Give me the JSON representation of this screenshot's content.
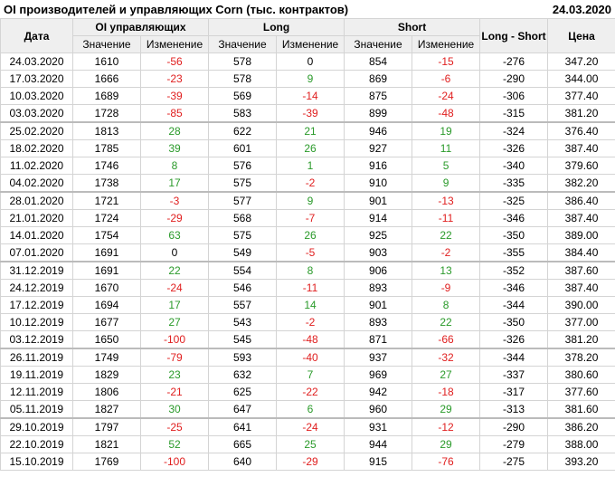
{
  "header": {
    "title": "OI производителей и управляющих Corn (тыс. контрактов)",
    "date": "24.03.2020"
  },
  "table": {
    "groups": [
      "Дата",
      "OI управляющих",
      "Long",
      "Short",
      "Long - Short",
      "Цена"
    ],
    "sub": [
      "Значение",
      "Изменение",
      "Значение",
      "Изменение",
      "Значение",
      "Изменение"
    ],
    "rows": [
      [
        "24.03.2020",
        "1610",
        "-56",
        "578",
        "0",
        "854",
        "-15",
        "-276",
        "347.20"
      ],
      [
        "17.03.2020",
        "1666",
        "-23",
        "578",
        "9",
        "869",
        "-6",
        "-290",
        "344.00"
      ],
      [
        "10.03.2020",
        "1689",
        "-39",
        "569",
        "-14",
        "875",
        "-24",
        "-306",
        "377.40"
      ],
      [
        "03.03.2020",
        "1728",
        "-85",
        "583",
        "-39",
        "899",
        "-48",
        "-315",
        "381.20"
      ],
      [
        "25.02.2020",
        "1813",
        "28",
        "622",
        "21",
        "946",
        "19",
        "-324",
        "376.40"
      ],
      [
        "18.02.2020",
        "1785",
        "39",
        "601",
        "26",
        "927",
        "11",
        "-326",
        "387.40"
      ],
      [
        "11.02.2020",
        "1746",
        "8",
        "576",
        "1",
        "916",
        "5",
        "-340",
        "379.60"
      ],
      [
        "04.02.2020",
        "1738",
        "17",
        "575",
        "-2",
        "910",
        "9",
        "-335",
        "382.20"
      ],
      [
        "28.01.2020",
        "1721",
        "-3",
        "577",
        "9",
        "901",
        "-13",
        "-325",
        "386.40"
      ],
      [
        "21.01.2020",
        "1724",
        "-29",
        "568",
        "-7",
        "914",
        "-11",
        "-346",
        "387.40"
      ],
      [
        "14.01.2020",
        "1754",
        "63",
        "575",
        "26",
        "925",
        "22",
        "-350",
        "389.00"
      ],
      [
        "07.01.2020",
        "1691",
        "0",
        "549",
        "-5",
        "903",
        "-2",
        "-355",
        "384.40"
      ],
      [
        "31.12.2019",
        "1691",
        "22",
        "554",
        "8",
        "906",
        "13",
        "-352",
        "387.60"
      ],
      [
        "24.12.2019",
        "1670",
        "-24",
        "546",
        "-11",
        "893",
        "-9",
        "-346",
        "387.40"
      ],
      [
        "17.12.2019",
        "1694",
        "17",
        "557",
        "14",
        "901",
        "8",
        "-344",
        "390.00"
      ],
      [
        "10.12.2019",
        "1677",
        "27",
        "543",
        "-2",
        "893",
        "22",
        "-350",
        "377.00"
      ],
      [
        "03.12.2019",
        "1650",
        "-100",
        "545",
        "-48",
        "871",
        "-66",
        "-326",
        "381.20"
      ],
      [
        "26.11.2019",
        "1749",
        "-79",
        "593",
        "-40",
        "937",
        "-32",
        "-344",
        "378.20"
      ],
      [
        "19.11.2019",
        "1829",
        "23",
        "632",
        "7",
        "969",
        "27",
        "-337",
        "380.60"
      ],
      [
        "12.11.2019",
        "1806",
        "-21",
        "625",
        "-22",
        "942",
        "-18",
        "-317",
        "377.60"
      ],
      [
        "05.11.2019",
        "1827",
        "30",
        "647",
        "6",
        "960",
        "29",
        "-313",
        "381.60"
      ],
      [
        "29.10.2019",
        "1797",
        "-25",
        "641",
        "-24",
        "931",
        "-12",
        "-290",
        "386.20"
      ],
      [
        "22.10.2019",
        "1821",
        "52",
        "665",
        "25",
        "944",
        "29",
        "-279",
        "388.00"
      ],
      [
        "15.10.2019",
        "1769",
        "-100",
        "640",
        "-29",
        "915",
        "-76",
        "-275",
        "393.20"
      ]
    ]
  }
}
